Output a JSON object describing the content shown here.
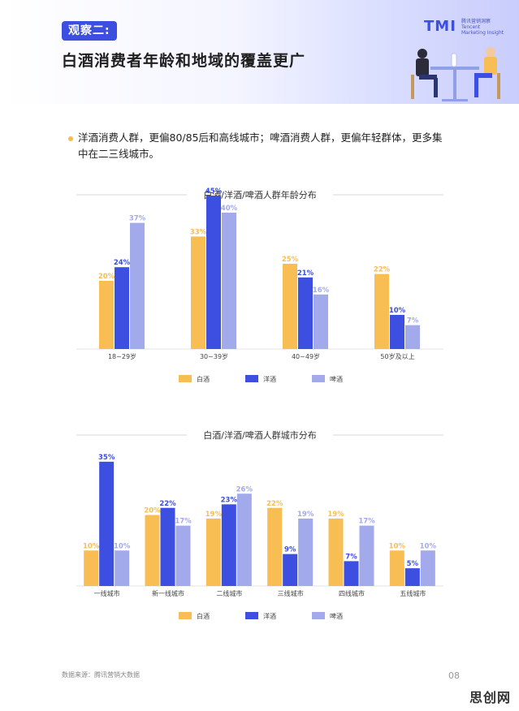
{
  "header": {
    "badge": "观察二:",
    "title": "白酒消费者年龄和地域的覆盖更广",
    "logo_mark": "TMI",
    "logo_text_line1": "腾讯营销洞察",
    "logo_text_line2": "Tencent",
    "logo_text_line3": "Marketing Insight"
  },
  "bullet": {
    "text": "洋酒消费人群，更偏80/85后和高线城市；啤酒消费人群，更偏年轻群体，更多集中在二三线城市。"
  },
  "colors": {
    "baijiu": "#f8bd53",
    "yangjiu": "#3d4fe0",
    "pijiu": "#a3aaeb",
    "label_baijiu": "#f8bd53",
    "label_yangjiu": "#3d4fe0",
    "label_pijiu": "#a3aaeb"
  },
  "chart_data": [
    {
      "type": "bar",
      "title": "白酒/洋酒/啤酒人群年龄分布",
      "categories": [
        "18~29岁",
        "30~39岁",
        "40~49岁",
        "50岁及以上"
      ],
      "series": [
        {
          "name": "白酒",
          "values": [
            20,
            33,
            25,
            22
          ]
        },
        {
          "name": "洋酒",
          "values": [
            24,
            45,
            21,
            10
          ]
        },
        {
          "name": "啤酒",
          "values": [
            37,
            40,
            16,
            7
          ]
        }
      ],
      "value_suffix": "%",
      "ylim": [
        0,
        50
      ],
      "legend_position": "bottom"
    },
    {
      "type": "bar",
      "title": "白酒/洋酒/啤酒人群城市分布",
      "categories": [
        "一线城市",
        "新一线城市",
        "二线城市",
        "三线城市",
        "四线城市",
        "五线城市"
      ],
      "series": [
        {
          "name": "白酒",
          "values": [
            10,
            20,
            19,
            22,
            19,
            10
          ]
        },
        {
          "name": "洋酒",
          "values": [
            35,
            22,
            23,
            9,
            7,
            5
          ]
        },
        {
          "name": "啤酒",
          "values": [
            10,
            17,
            26,
            19,
            17,
            10
          ]
        }
      ],
      "value_suffix": "%",
      "ylim": [
        0,
        40
      ],
      "legend_position": "bottom"
    }
  ],
  "footer": {
    "source": "数据来源：腾讯营销大数据",
    "page": "08",
    "watermark": "思创网"
  }
}
